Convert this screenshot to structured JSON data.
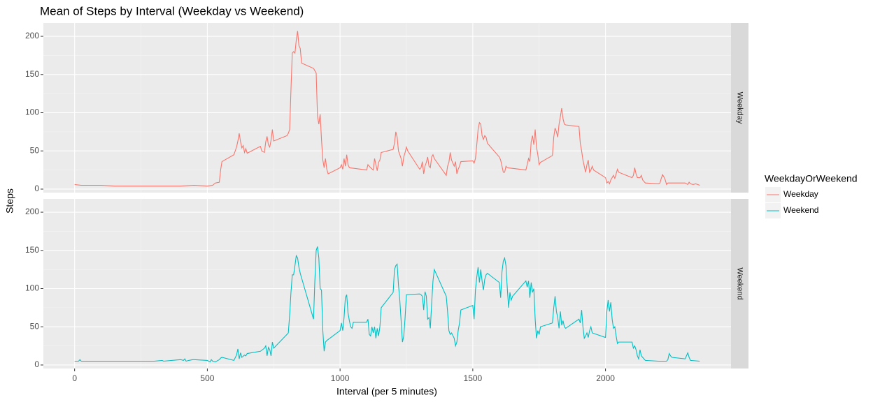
{
  "chart_data": {
    "type": "line",
    "title": "Mean of Steps by Interval (Weekday vs Weekend)",
    "xlabel": "Interval (per 5 minutes)",
    "ylabel": "Steps",
    "legend_title": "WeekdayOrWeekend",
    "legend_position": "right",
    "grid": true,
    "facets": true,
    "xlim": [
      -117.75,
      2472.75
    ],
    "xticks": [
      0,
      500,
      1000,
      1500,
      2000
    ],
    "ylim": [
      -4.6,
      217.4
    ],
    "yticks": [
      0,
      50,
      100,
      150,
      200
    ],
    "series": [
      {
        "name": "Weekday",
        "color": "#f8766d",
        "x": [
          0,
          25,
          50,
          100,
          150,
          200,
          300,
          400,
          450,
          500,
          520,
          530,
          545,
          550,
          555,
          600,
          610,
          615,
          620,
          625,
          630,
          635,
          640,
          645,
          650,
          700,
          705,
          715,
          720,
          725,
          730,
          735,
          740,
          745,
          750,
          800,
          805,
          810,
          815,
          820,
          825,
          830,
          835,
          840,
          845,
          850,
          855,
          900,
          905,
          910,
          915,
          920,
          925,
          930,
          935,
          940,
          945,
          950,
          955,
          1000,
          1005,
          1010,
          1015,
          1020,
          1025,
          1030,
          1035,
          1100,
          1105,
          1115,
          1125,
          1130,
          1140,
          1145,
          1150,
          1155,
          1200,
          1205,
          1210,
          1215,
          1220,
          1230,
          1235,
          1240,
          1245,
          1250,
          1255,
          1300,
          1305,
          1310,
          1315,
          1320,
          1325,
          1330,
          1335,
          1340,
          1345,
          1350,
          1355,
          1400,
          1405,
          1410,
          1415,
          1420,
          1430,
          1435,
          1440,
          1445,
          1450,
          1455,
          1500,
          1505,
          1510,
          1515,
          1520,
          1525,
          1530,
          1535,
          1540,
          1545,
          1550,
          1555,
          1600,
          1605,
          1610,
          1615,
          1620,
          1625,
          1630,
          1700,
          1705,
          1710,
          1715,
          1720,
          1725,
          1730,
          1735,
          1740,
          1745,
          1750,
          1755,
          1800,
          1805,
          1810,
          1815,
          1820,
          1825,
          1830,
          1835,
          1840,
          1845,
          1850,
          1900,
          1905,
          1910,
          1915,
          1920,
          1925,
          1930,
          1935,
          1940,
          1945,
          1950,
          1955,
          2000,
          2005,
          2010,
          2015,
          2020,
          2025,
          2030,
          2035,
          2040,
          2045,
          2050,
          2100,
          2105,
          2110,
          2115,
          2120,
          2130,
          2135,
          2140,
          2145,
          2150,
          2200,
          2205,
          2210,
          2215,
          2220,
          2225,
          2230,
          2235,
          2300,
          2305,
          2310,
          2315,
          2320,
          2330,
          2340,
          2355
        ],
        "values": [
          6,
          5,
          5,
          5,
          4,
          4,
          4,
          4,
          5,
          4,
          5,
          8,
          9,
          25,
          36,
          45,
          55,
          63,
          73,
          62,
          54,
          57,
          48,
          53,
          47,
          56,
          50,
          48,
          62,
          69,
          58,
          55,
          64,
          78,
          63,
          70,
          73,
          78,
          130,
          178,
          180,
          178,
          195,
          207,
          188,
          184,
          165,
          158,
          155,
          152,
          95,
          85,
          98,
          65,
          38,
          28,
          40,
          26,
          20,
          28,
          32,
          26,
          40,
          30,
          45,
          32,
          28,
          25,
          32,
          28,
          25,
          40,
          24,
          35,
          38,
          48,
          52,
          60,
          75,
          68,
          50,
          40,
          30,
          42,
          48,
          55,
          50,
          26,
          28,
          36,
          20,
          30,
          35,
          42,
          30,
          28,
          42,
          45,
          40,
          18,
          30,
          35,
          48,
          38,
          30,
          36,
          20,
          26,
          30,
          36,
          37,
          34,
          40,
          58,
          78,
          87,
          85,
          70,
          65,
          70,
          68,
          60,
          42,
          38,
          30,
          22,
          22,
          30,
          28,
          25,
          32,
          40,
          36,
          62,
          70,
          58,
          78,
          55,
          45,
          32,
          35,
          44,
          68,
          80,
          75,
          68,
          85,
          95,
          106,
          92,
          85,
          84,
          82,
          60,
          50,
          38,
          30,
          22,
          32,
          38,
          22,
          25,
          30,
          25,
          15,
          8,
          10,
          7,
          12,
          15,
          18,
          14,
          20,
          26,
          22,
          15,
          18,
          28,
          20,
          15,
          15,
          18,
          12,
          10,
          8,
          7,
          8,
          14,
          19,
          16,
          12,
          6,
          8,
          8,
          7,
          6,
          9,
          7,
          6,
          7,
          5
        ]
      },
      {
        "name": "Weekend",
        "color": "#00bfc4",
        "x": [
          0,
          10,
          15,
          20,
          25,
          100,
          200,
          300,
          330,
          335,
          400,
          410,
          415,
          420,
          430,
          445,
          450,
          500,
          510,
          515,
          520,
          530,
          545,
          550,
          555,
          600,
          610,
          615,
          620,
          625,
          630,
          640,
          645,
          650,
          700,
          715,
          720,
          725,
          730,
          735,
          740,
          745,
          750,
          800,
          805,
          810,
          815,
          820,
          825,
          830,
          835,
          840,
          845,
          850,
          900,
          905,
          910,
          915,
          920,
          925,
          930,
          935,
          940,
          945,
          950,
          1000,
          1005,
          1010,
          1015,
          1020,
          1025,
          1030,
          1035,
          1040,
          1045,
          1050,
          1100,
          1105,
          1110,
          1115,
          1120,
          1125,
          1130,
          1135,
          1140,
          1145,
          1150,
          1155,
          1200,
          1205,
          1210,
          1215,
          1220,
          1225,
          1230,
          1235,
          1240,
          1245,
          1250,
          1300,
          1305,
          1310,
          1315,
          1320,
          1325,
          1330,
          1335,
          1340,
          1345,
          1350,
          1355,
          1400,
          1405,
          1410,
          1415,
          1420,
          1430,
          1435,
          1440,
          1445,
          1450,
          1455,
          1500,
          1505,
          1510,
          1515,
          1520,
          1525,
          1530,
          1535,
          1540,
          1545,
          1550,
          1555,
          1600,
          1605,
          1610,
          1615,
          1620,
          1625,
          1630,
          1635,
          1640,
          1645,
          1650,
          1700,
          1705,
          1710,
          1715,
          1720,
          1725,
          1730,
          1735,
          1740,
          1745,
          1750,
          1755,
          1800,
          1805,
          1810,
          1815,
          1820,
          1825,
          1830,
          1835,
          1840,
          1845,
          1850,
          1900,
          1905,
          1910,
          1915,
          1920,
          1925,
          1930,
          1935,
          1940,
          1945,
          1950,
          2000,
          2005,
          2010,
          2015,
          2020,
          2025,
          2030,
          2035,
          2040,
          2045,
          2050,
          2100,
          2105,
          2110,
          2115,
          2120,
          2125,
          2130,
          2135,
          2140,
          2145,
          2150,
          2200,
          2230,
          2235,
          2240,
          2245,
          2250,
          2300,
          2305,
          2310,
          2315,
          2320,
          2355
        ],
        "values": [
          5,
          5,
          5,
          7,
          5,
          5,
          5,
          5,
          6,
          5,
          7,
          6,
          8,
          5,
          6,
          7,
          7,
          6,
          4,
          7,
          5,
          4,
          7,
          9,
          10,
          6,
          13,
          21,
          8,
          16,
          10,
          13,
          12,
          15,
          18,
          22,
          25,
          12,
          23,
          20,
          12,
          30,
          22,
          40,
          42,
          65,
          95,
          118,
          118,
          130,
          143,
          140,
          128,
          120,
          60,
          110,
          150,
          155,
          140,
          100,
          98,
          45,
          18,
          30,
          32,
          45,
          55,
          45,
          62,
          88,
          92,
          68,
          58,
          50,
          48,
          56,
          56,
          60,
          40,
          38,
          50,
          42,
          50,
          35,
          48,
          38,
          50,
          75,
          95,
          125,
          130,
          132,
          105,
          85,
          58,
          30,
          38,
          62,
          92,
          93,
          92,
          90,
          72,
          96,
          90,
          60,
          62,
          48,
          80,
          110,
          125,
          90,
          70,
          45,
          40,
          42,
          35,
          25,
          30,
          45,
          55,
          72,
          78,
          60,
          98,
          115,
          128,
          108,
          125,
          110,
          98,
          112,
          118,
          120,
          108,
          88,
          122,
          136,
          140,
          130,
          100,
          75,
          95,
          85,
          90,
          110,
          102,
          110,
          88,
          108,
          95,
          100,
          60,
          35,
          45,
          40,
          50,
          55,
          75,
          90,
          70,
          62,
          48,
          70,
          52,
          58,
          50,
          48,
          60,
          55,
          72,
          50,
          35,
          38,
          42,
          36,
          45,
          50,
          42,
          36,
          70,
          85,
          70,
          82,
          60,
          48,
          50,
          38,
          28,
          30,
          30,
          22,
          25,
          20,
          12,
          8,
          20,
          12,
          10,
          8,
          6,
          5,
          5,
          7,
          15,
          12,
          10,
          8,
          12,
          16,
          10,
          6,
          5
        ]
      }
    ]
  }
}
